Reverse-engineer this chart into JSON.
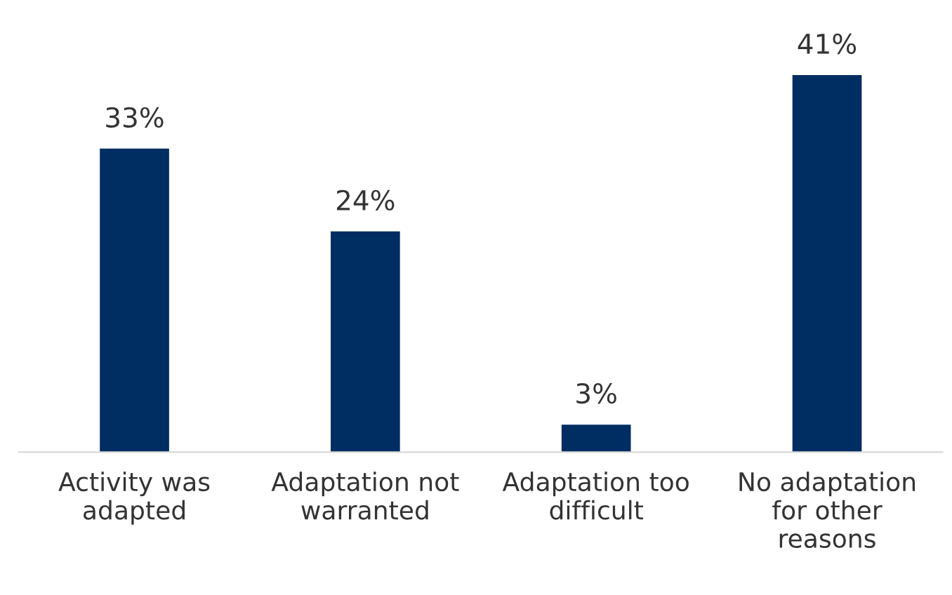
{
  "chart_data": {
    "type": "bar",
    "categories": [
      "Activity was adapted",
      "Adaptation not warranted",
      "Adaptation too difficult",
      "No adaptation for other reasons"
    ],
    "values": [
      33,
      24,
      3,
      41
    ],
    "value_labels": [
      "33%",
      "24%",
      "3%",
      "41%"
    ],
    "color": "#002d62",
    "grid": false,
    "legend": false
  }
}
